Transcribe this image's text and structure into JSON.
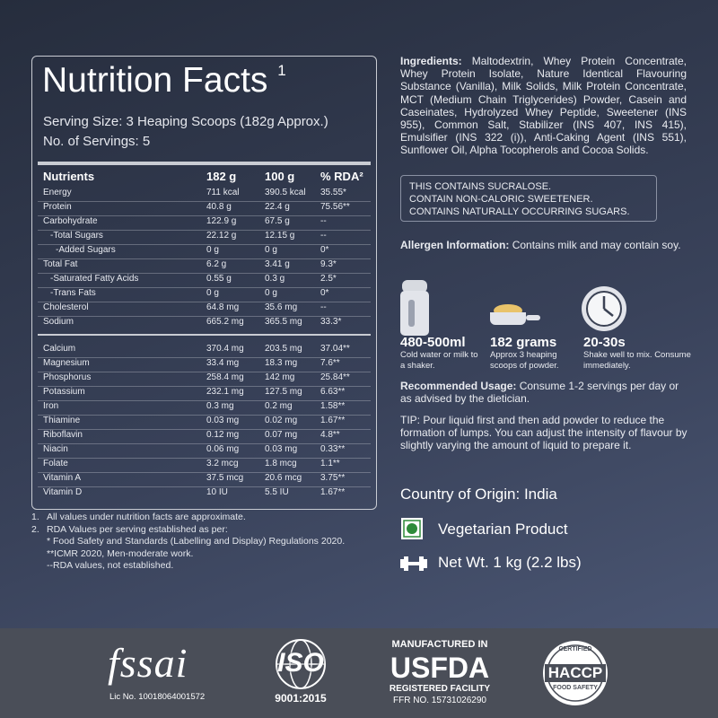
{
  "nutrition": {
    "title": "Nutrition Facts",
    "title_note": "1",
    "serving_size": "Serving Size: 3 Heaping Scoops (182g Approx.)",
    "servings": "No. of Servings: 5",
    "header": [
      "Nutrients",
      "182 g",
      "100 g",
      "% RDA²"
    ],
    "groups": [
      [
        [
          "Energy",
          "711 kcal",
          "390.5 kcal",
          "35.55*"
        ],
        [
          "Protein",
          "40.8 g",
          "22.4 g",
          "75.56**"
        ],
        [
          "Carbohydrate",
          "122.9 g",
          "67.5 g",
          "--"
        ],
        [
          "-Total Sugars",
          "22.12 g",
          "12.15 g",
          "--"
        ],
        [
          "-Added Sugars",
          "0 g",
          "0 g",
          "0*"
        ],
        [
          "Total Fat",
          "6.2 g",
          "3.41 g",
          "9.3*"
        ],
        [
          "-Saturated Fatty Acids",
          "0.55 g",
          "0.3 g",
          "2.5*"
        ],
        [
          "-Trans Fats",
          "0 g",
          "0 g",
          "0*"
        ],
        [
          "Cholesterol",
          "64.8 mg",
          "35.6 mg",
          "--"
        ],
        [
          "Sodium",
          "665.2 mg",
          "365.5 mg",
          "33.3*"
        ]
      ],
      [
        [
          "Calcium",
          "370.4 mg",
          "203.5 mg",
          "37.04**"
        ],
        [
          "Magnesium",
          "33.4 mg",
          "18.3 mg",
          "7.6**"
        ],
        [
          "Phosphorus",
          "258.4 mg",
          "142 mg",
          "25.84**"
        ],
        [
          "Potassium",
          "232.1 mg",
          "127.5 mg",
          "6.63**"
        ],
        [
          "Iron",
          "0.3 mg",
          "0.2 mg",
          "1.58**"
        ],
        [
          "Thiamine",
          "0.03 mg",
          "0.02 mg",
          "1.67**"
        ],
        [
          "Riboflavin",
          "0.12 mg",
          "0.07 mg",
          "4.8**"
        ],
        [
          "Niacin",
          "0.06 mg",
          "0.03 mg",
          "0.33**"
        ],
        [
          "Folate",
          "3.2 mcg",
          "1.8 mcg",
          "1.1**"
        ],
        [
          "Vitamin A",
          "37.5 mcg",
          "20.6 mcg",
          "3.75**"
        ],
        [
          "Vitamin D",
          "10 IU",
          "5.5 IU",
          "1.67**"
        ]
      ]
    ]
  },
  "footnotes": [
    {
      "marker": "1.",
      "text": "All values under nutrition facts  are approximate."
    },
    {
      "marker": "2.",
      "text": "RDA Values per serving established as per:",
      "lines": [
        "* Food Safety and Standards (Labelling and Display) Regulations 2020.",
        "**ICMR 2020, Men-moderate work.",
        "--RDA values, not established."
      ]
    }
  ],
  "ingredients": {
    "label": "Ingredients:",
    "text": "Maltodextrin, Whey Protein Concentrate, Whey Protein Isolate, Nature Identical Flavouring Substance (Vanilla), Milk Solids, Milk Protein Concentrate, MCT (Medium Chain Triglycerides) Powder, Casein and Caseinates, Hydrolyzed Whey Peptide, Sweetener (INS 955), Common Salt, Stabilizer (INS 407, INS 415), Emulsifier (INS 322 (i)), Anti-Caking Agent (INS 551), Sunflower Oil, Alpha Tocopherols and Cocoa Solids."
  },
  "notice": [
    "THIS CONTAINS SUCRALOSE.",
    "CONTAIN NON-CALORIC SWEETENER.",
    "CONTAINS NATURALLY OCCURRING SUGARS."
  ],
  "allergen": {
    "label": "Allergen Information:",
    "text": "Contains milk and may contain soy."
  },
  "steps": [
    {
      "title": "480-500ml",
      "text": "Cold water or milk to a shaker."
    },
    {
      "title": "182 grams",
      "text": "Approx 3 heaping scoops of powder."
    },
    {
      "title": "20-30s",
      "text": "Shake well to mix. Consume immediately."
    }
  ],
  "usage": {
    "label": "Recommended Usage:",
    "text": "Consume 1-2 servings per day or as advised by the dietician."
  },
  "tip": "TIP: Pour liquid first and then add powder to reduce the formation of lumps. You can adjust the intensity of flavour by slightly varying the amount of liquid to prepare it.",
  "origin": "Country of Origin: India",
  "vegetarian": "Vegetarian Product",
  "net_weight": "Net Wt. 1 kg (2.2 lbs)",
  "footer": {
    "fssai": "fssai",
    "fssai_lic": "Lic No. 10018064001572",
    "iso": "ISO",
    "iso_std": "9001:2015",
    "usfda_top": "MANUFACTURED IN",
    "usfda": "USFDA",
    "usfda_sub": "REGISTERED FACILITY",
    "usfda_ffr": "FFR NO. 15731026290",
    "haccp_top": "CERTIFIED",
    "haccp": "HACCP",
    "haccp_bottom": "FOOD SAFETY"
  }
}
